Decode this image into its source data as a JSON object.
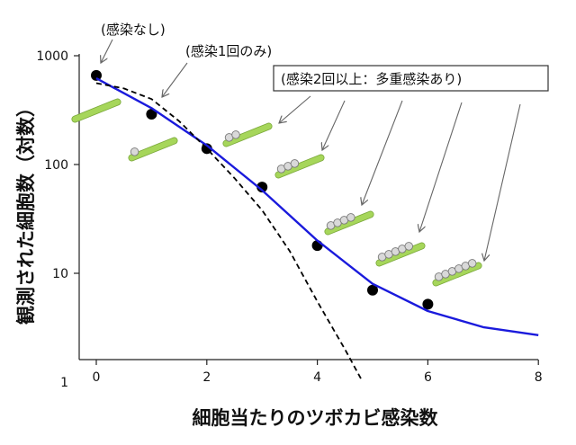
{
  "chart_data": {
    "type": "line",
    "title": "",
    "xlabel": "細胞当たりのツボカビ感染数",
    "ylabel": "観測された細胞数（対数）",
    "x_ticks": [
      0,
      2,
      4,
      6,
      8
    ],
    "y_ticks": [
      {
        "value": 1,
        "label": "1"
      },
      {
        "value": 10,
        "label": "10"
      },
      {
        "value": 100,
        "label": "100"
      },
      {
        "value": 1000,
        "label": "1000"
      }
    ],
    "xlim": [
      0,
      8
    ],
    "ylim": [
      1,
      2000
    ],
    "y_scale": "log",
    "grid": false,
    "series": [
      {
        "style": "points",
        "color": "#000000",
        "x": [
          0,
          1,
          2,
          3,
          4,
          5,
          6
        ],
        "y": [
          660,
          290,
          140,
          62,
          18,
          7,
          5.2
        ]
      },
      {
        "style": "solid",
        "color": "#1a1adc",
        "x": [
          0,
          1,
          2,
          3,
          4,
          5,
          6,
          7,
          8
        ],
        "y": [
          620,
          330,
          150,
          58,
          20,
          8,
          4.5,
          3.2,
          2.7
        ]
      },
      {
        "style": "dashed",
        "color": "#000000",
        "x": [
          0,
          0.5,
          1,
          1.5,
          2,
          2.5,
          3,
          3.5,
          4,
          4.5,
          4.8
        ],
        "y": [
          560,
          500,
          400,
          250,
          140,
          75,
          38,
          16,
          5.5,
          2.0,
          1.05
        ]
      }
    ],
    "annotations": [
      {
        "text": "(感染なし)"
      },
      {
        "text": "(感染1回のみ)"
      },
      {
        "text": "(感染2回以上：多重感染あり)"
      }
    ]
  }
}
